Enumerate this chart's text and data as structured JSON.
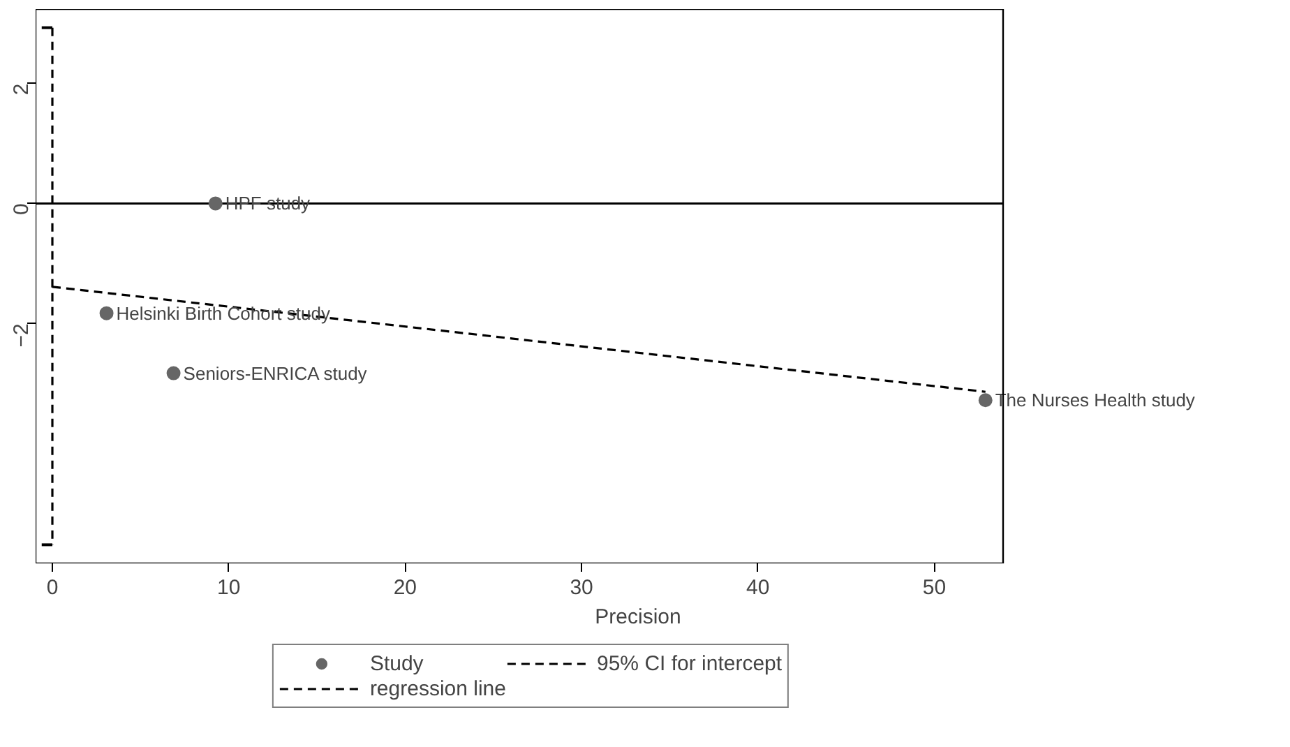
{
  "chart_data": {
    "type": "scatter",
    "xlabel": "Precision",
    "xlim": [
      -0.95,
      53.9
    ],
    "ylim": [
      -6.0,
      3.24
    ],
    "xticks": [
      0,
      10,
      20,
      30,
      40,
      50
    ],
    "yticks": [
      -2,
      0,
      2
    ],
    "grid": false,
    "legend": "bottom",
    "series": [
      {
        "name": "Study",
        "color": "#666666",
        "marker": "circle",
        "x": [
          9.25,
          3.07,
          6.87,
          52.9
        ],
        "values": [
          0,
          -1.83,
          -2.83,
          -3.28
        ]
      },
      {
        "name": "regression line",
        "type": "line",
        "color": "#000000",
        "line_style": "dashed",
        "x": [
          0,
          52.9
        ],
        "values": [
          -1.39,
          -3.14
        ]
      },
      {
        "name": "95% CI for intercept",
        "type": "line",
        "color": "#000000",
        "line_style": "dashed",
        "x": [
          0,
          0
        ],
        "values": [
          2.93,
          -5.69
        ]
      }
    ],
    "ref_lines": [
      {
        "axis": "y",
        "value": 0,
        "color": "#000000",
        "line_style": "solid"
      }
    ],
    "annotations": [
      {
        "text": "HPF study",
        "x": 9.25,
        "y": 0
      },
      {
        "text": "Helsinki Birth Cohort study",
        "x": 3.07,
        "y": -1.83
      },
      {
        "text": "Seniors-ENRICA study",
        "x": 6.87,
        "y": -2.83
      },
      {
        "text": "The Nurses Health study",
        "x": 52.9,
        "y": -3.28
      }
    ]
  }
}
